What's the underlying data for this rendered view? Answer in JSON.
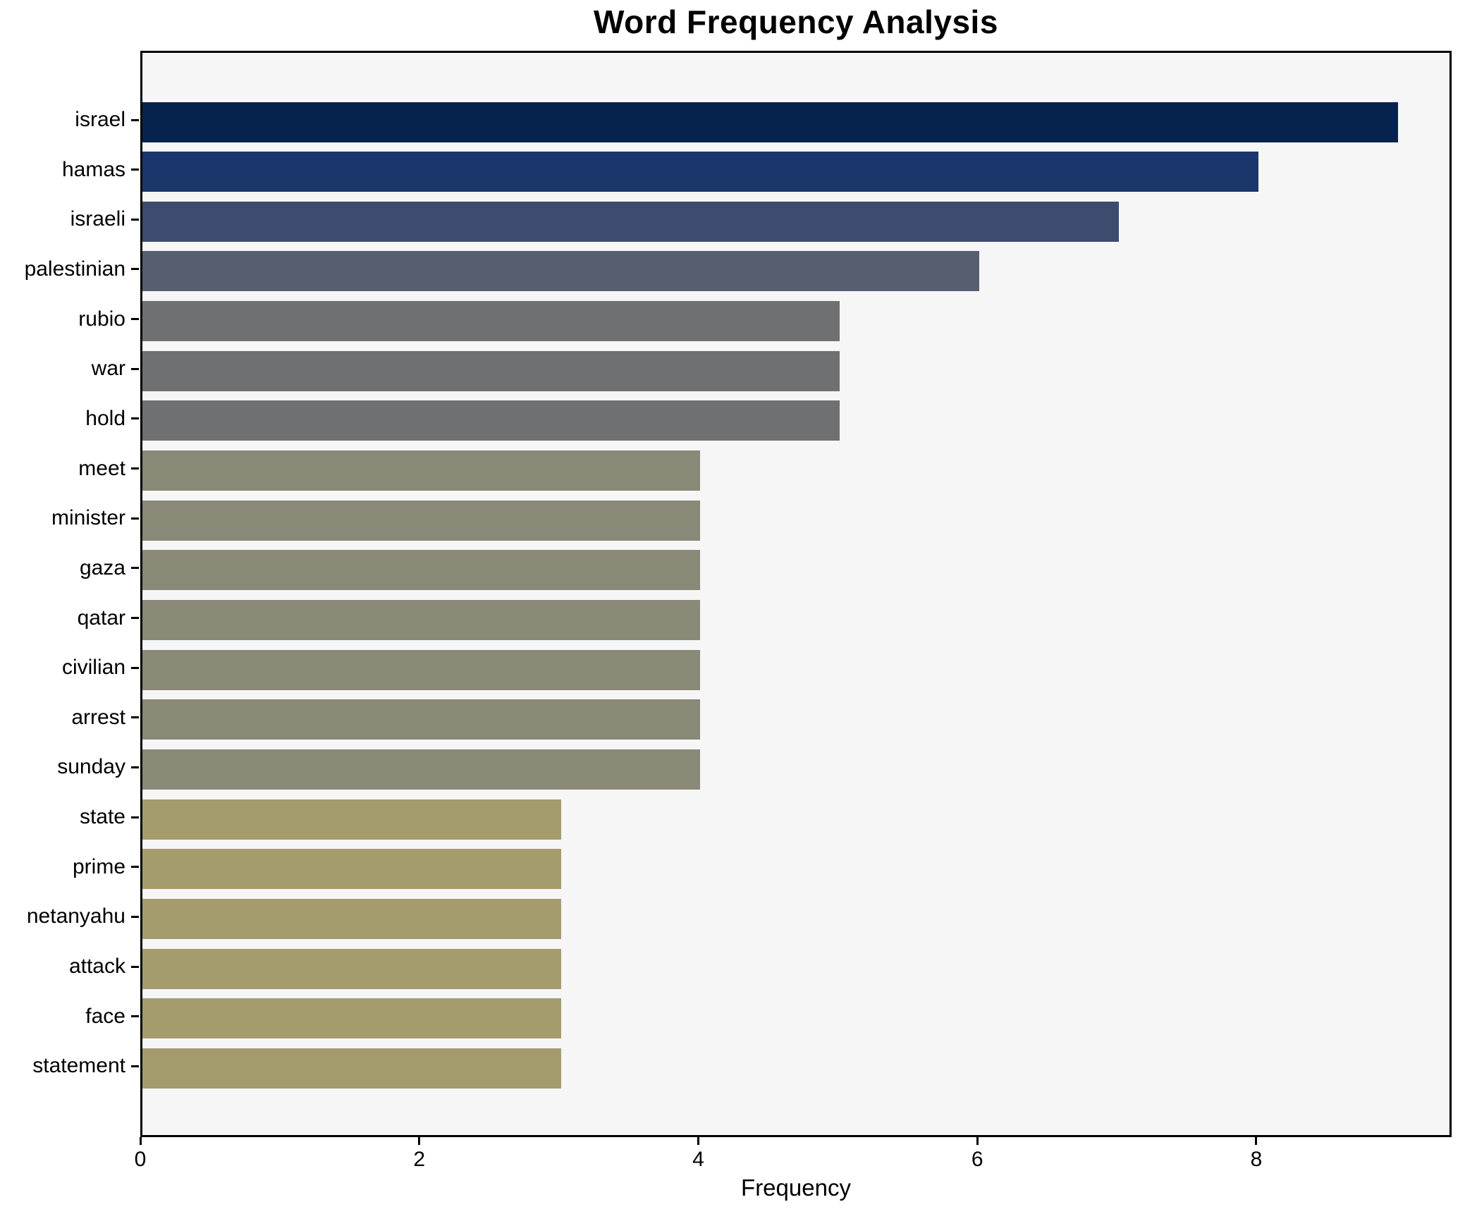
{
  "chart_data": {
    "type": "bar",
    "orientation": "horizontal",
    "title": "Word Frequency Analysis",
    "xlabel": "Frequency",
    "ylabel": "",
    "categories": [
      "israel",
      "hamas",
      "israeli",
      "palestinian",
      "rubio",
      "war",
      "hold",
      "meet",
      "minister",
      "gaza",
      "qatar",
      "civilian",
      "arrest",
      "sunday",
      "state",
      "prime",
      "netanyahu",
      "attack",
      "face",
      "statement"
    ],
    "values": [
      9,
      8,
      7,
      6,
      5,
      5,
      5,
      4,
      4,
      4,
      4,
      4,
      4,
      4,
      3,
      3,
      3,
      3,
      3,
      3
    ],
    "bar_colors": [
      "#06234e",
      "#1b366b",
      "#3c4b6e",
      "#565e70",
      "#6f7071",
      "#6f7071",
      "#6f7071",
      "#8a8876",
      "#8a8876",
      "#8a8876",
      "#8a8876",
      "#8a8876",
      "#8a8876",
      "#8a8876",
      "#a59c6e",
      "#a59c6e",
      "#a59c6e",
      "#a59c6e",
      "#a59c6e",
      "#a59c6e"
    ],
    "xlim": [
      0,
      9.4
    ],
    "xticks": [
      0,
      2,
      4,
      6,
      8
    ],
    "grid": false,
    "legend_position": "none",
    "plot_background": "#f6f6f7",
    "figure_background": "#ffffff",
    "spine_color": "#000000"
  }
}
